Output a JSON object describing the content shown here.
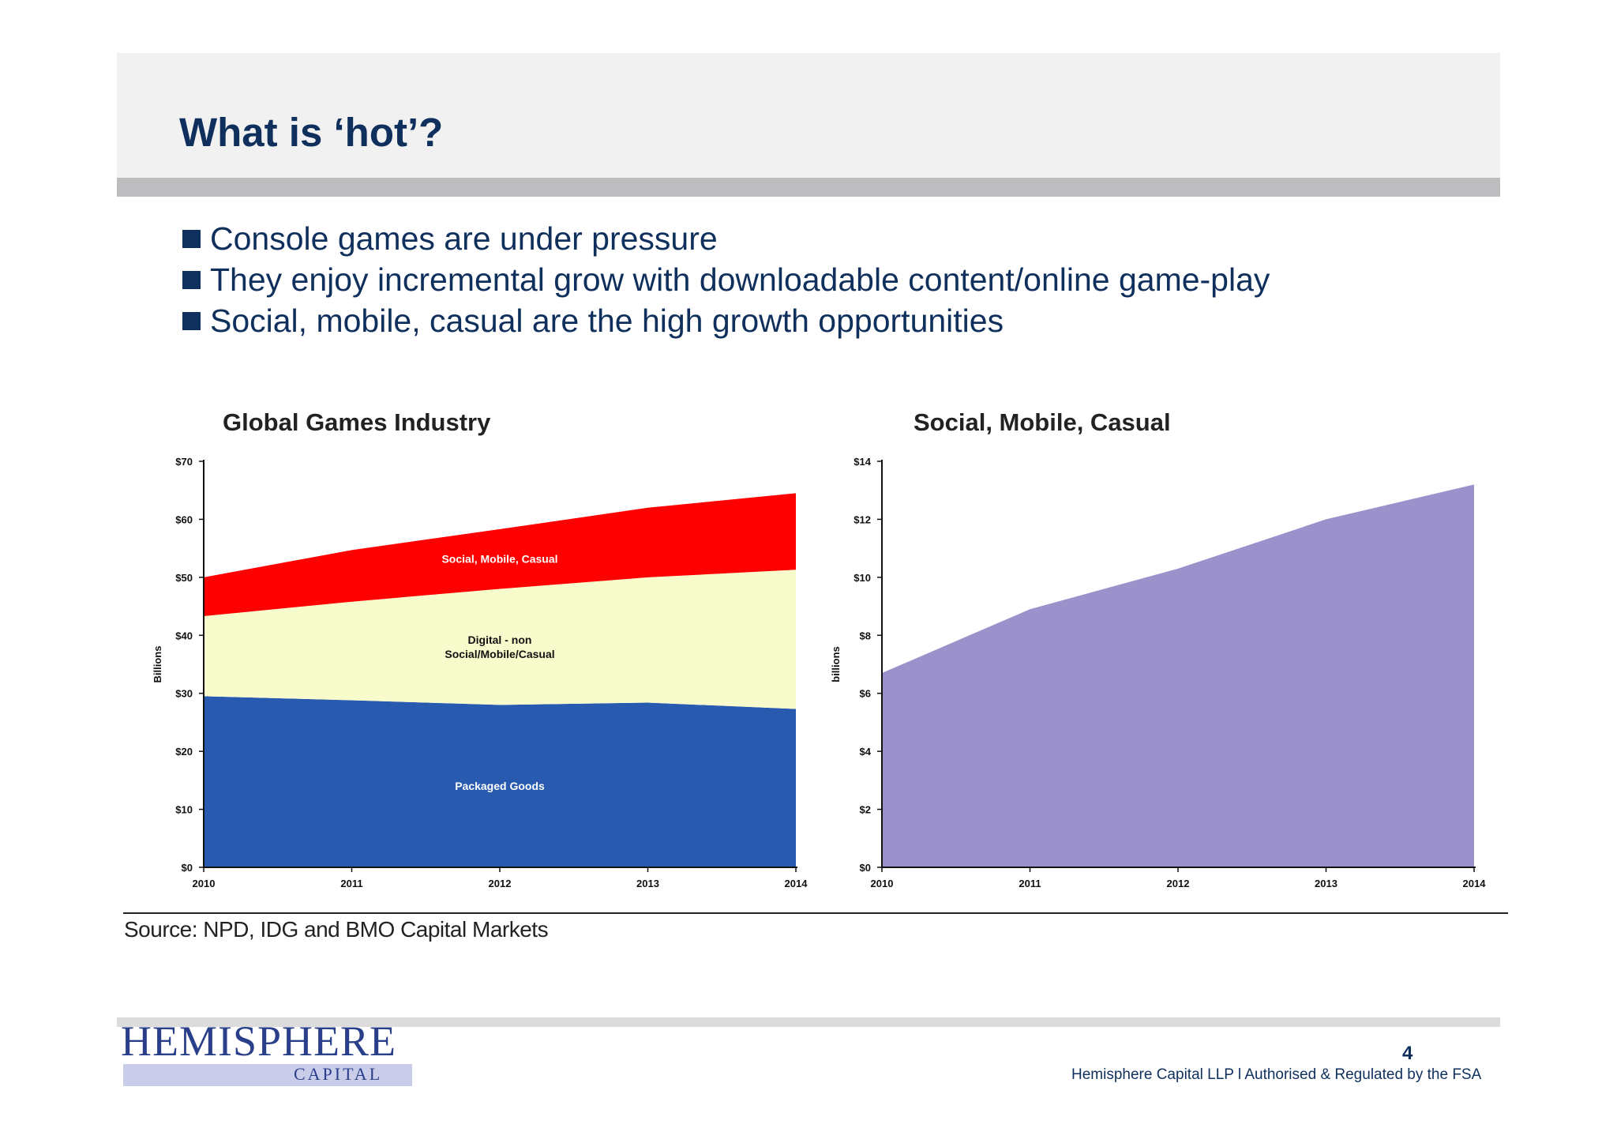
{
  "slide": {
    "title": "What is ‘hot’?",
    "bullets": [
      "Console games are under pressure",
      "They enjoy incremental grow with downloadable content/online game-play",
      "Social, mobile, casual are the high growth opportunities"
    ]
  },
  "chart_data": [
    {
      "type": "area",
      "title": "Global Games Industry",
      "ylabel": "Billions",
      "x": [
        "2010",
        "2011",
        "2012",
        "2013",
        "2014"
      ],
      "yticks": [
        "$0",
        "$10",
        "$20",
        "$30",
        "$40",
        "$50",
        "$60",
        "$70"
      ],
      "ylim": [
        0,
        70
      ],
      "stacked": true,
      "series": [
        {
          "name": "Packaged Goods",
          "values": [
            29.5,
            28.8,
            28.0,
            28.4,
            27.3
          ],
          "color": "#285bb0",
          "label_color": "#ffffff"
        },
        {
          "name": "Digital - non\nSocial/Mobile/Casual",
          "values": [
            13.8,
            17.0,
            20.0,
            21.6,
            24.0
          ],
          "color": "#f8fbcc",
          "label_color": "#111111"
        },
        {
          "name": "Social, Mobile, Casual",
          "values": [
            6.7,
            8.9,
            10.3,
            12.0,
            13.2
          ],
          "color": "#fe0000",
          "label_color": "#ffffff"
        }
      ]
    },
    {
      "type": "area",
      "title": "Social, Mobile, Casual",
      "ylabel": "billions",
      "x": [
        "2010",
        "2011",
        "2012",
        "2013",
        "2014"
      ],
      "yticks": [
        "$0",
        "$2",
        "$4",
        "$6",
        "$8",
        "$10",
        "$12",
        "$14"
      ],
      "ylim": [
        0,
        14
      ],
      "series": [
        {
          "values": [
            6.7,
            8.9,
            10.3,
            12.0,
            13.2
          ],
          "color": "#9b91cb"
        }
      ]
    }
  ],
  "source": "Source: NPD, IDG and BMO Capital Markets",
  "footer": {
    "logo_main": "HEMISPHERE",
    "logo_sub": "CAPITAL",
    "page_number": "4",
    "legal": "Hemisphere Capital LLP l Authorised & Regulated by the FSA"
  }
}
